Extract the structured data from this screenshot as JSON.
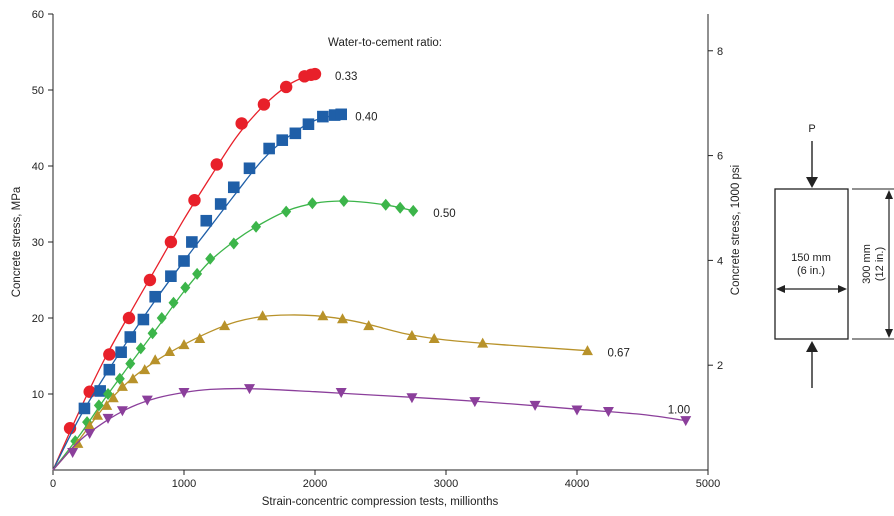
{
  "chart_data": {
    "type": "line",
    "title": "",
    "legend_title": "Water-to-cement ratio:",
    "xlabel": "Strain-concentric compression tests, millionths",
    "ylabel": "Concrete stress, MPa",
    "y2label": "Concrete stress, 1000 psi",
    "xlim": [
      0,
      5000
    ],
    "ylim": [
      0,
      60
    ],
    "xticks": [
      "0",
      "1000",
      "2000",
      "3000",
      "4000",
      "5000"
    ],
    "yticks": [
      "10",
      "20",
      "30",
      "40",
      "50",
      "60"
    ],
    "y2ticks": [
      "2",
      "4",
      "6",
      "8"
    ],
    "y2_values_ksi": [
      2,
      4,
      6,
      8
    ],
    "ksi_to_mpa": 6.895,
    "grid": false,
    "series": [
      {
        "name": "0.33",
        "color": "#e8202a",
        "marker": "circle",
        "points": [
          [
            130,
            5.5
          ],
          [
            280,
            10.3
          ],
          [
            430,
            15.2
          ],
          [
            580,
            20.0
          ],
          [
            740,
            25.0
          ],
          [
            900,
            30.0
          ],
          [
            1080,
            35.5
          ],
          [
            1250,
            40.2
          ],
          [
            1440,
            45.6
          ],
          [
            1610,
            48.1
          ],
          [
            1780,
            50.4
          ],
          [
            1920,
            51.8
          ],
          [
            1970,
            52.0
          ],
          [
            2000,
            52.1
          ]
        ],
        "curve": [
          [
            0,
            0
          ],
          [
            200,
            7.7
          ],
          [
            400,
            14.8
          ],
          [
            600,
            21.0
          ],
          [
            800,
            27.0
          ],
          [
            1000,
            33.0
          ],
          [
            1200,
            38.5
          ],
          [
            1400,
            43.8
          ],
          [
            1600,
            47.8
          ],
          [
            1800,
            50.7
          ],
          [
            1950,
            51.9
          ],
          [
            2000,
            52.1
          ]
        ]
      },
      {
        "name": "0.40",
        "color": "#1f5fa8",
        "marker": "square",
        "points": [
          [
            240,
            8.1
          ],
          [
            360,
            10.4
          ],
          [
            430,
            13.2
          ],
          [
            520,
            15.5
          ],
          [
            590,
            17.5
          ],
          [
            690,
            19.8
          ],
          [
            780,
            22.8
          ],
          [
            900,
            25.5
          ],
          [
            1000,
            27.5
          ],
          [
            1060,
            30.0
          ],
          [
            1170,
            32.8
          ],
          [
            1280,
            35.0
          ],
          [
            1380,
            37.2
          ],
          [
            1500,
            39.7
          ],
          [
            1650,
            42.3
          ],
          [
            1750,
            43.4
          ],
          [
            1850,
            44.3
          ],
          [
            1950,
            45.5
          ],
          [
            2060,
            46.5
          ],
          [
            2150,
            46.7
          ],
          [
            2200,
            46.8
          ]
        ],
        "curve": [
          [
            0,
            0
          ],
          [
            200,
            6.8
          ],
          [
            400,
            12.5
          ],
          [
            600,
            17.8
          ],
          [
            800,
            22.8
          ],
          [
            1000,
            27.5
          ],
          [
            1200,
            32.0
          ],
          [
            1400,
            36.5
          ],
          [
            1600,
            40.8
          ],
          [
            1800,
            43.9
          ],
          [
            2000,
            46.0
          ],
          [
            2200,
            46.8
          ]
        ]
      },
      {
        "name": "0.50",
        "color": "#3cb54a",
        "marker": "diamond",
        "points": [
          [
            170,
            3.8
          ],
          [
            260,
            6.3
          ],
          [
            350,
            8.5
          ],
          [
            420,
            10.0
          ],
          [
            510,
            12.0
          ],
          [
            590,
            14.0
          ],
          [
            670,
            16.0
          ],
          [
            760,
            18.0
          ],
          [
            830,
            20.0
          ],
          [
            920,
            22.0
          ],
          [
            1010,
            24.0
          ],
          [
            1100,
            25.8
          ],
          [
            1200,
            27.8
          ],
          [
            1380,
            29.8
          ],
          [
            1550,
            32.0
          ],
          [
            1780,
            34.0
          ],
          [
            1980,
            35.1
          ],
          [
            2220,
            35.4
          ],
          [
            2540,
            34.9
          ],
          [
            2650,
            34.5
          ],
          [
            2750,
            34.1
          ]
        ],
        "curve": [
          [
            0,
            0
          ],
          [
            200,
            4.5
          ],
          [
            400,
            9.5
          ],
          [
            600,
            14.2
          ],
          [
            800,
            18.8
          ],
          [
            1000,
            23.5
          ],
          [
            1200,
            27.5
          ],
          [
            1400,
            30.3
          ],
          [
            1600,
            32.5
          ],
          [
            1800,
            34.2
          ],
          [
            2000,
            35.1
          ],
          [
            2200,
            35.4
          ],
          [
            2400,
            35.2
          ],
          [
            2600,
            34.7
          ],
          [
            2750,
            34.1
          ]
        ]
      },
      {
        "name": "0.67",
        "color": "#b8922a",
        "marker": "triangle-up",
        "points": [
          [
            190,
            3.5
          ],
          [
            280,
            5.8
          ],
          [
            340,
            7.2
          ],
          [
            410,
            8.5
          ],
          [
            460,
            9.5
          ],
          [
            530,
            11.0
          ],
          [
            610,
            12.0
          ],
          [
            700,
            13.2
          ],
          [
            780,
            14.5
          ],
          [
            890,
            15.6
          ],
          [
            1000,
            16.5
          ],
          [
            1120,
            17.3
          ],
          [
            1310,
            19.0
          ],
          [
            1600,
            20.3
          ],
          [
            2060,
            20.3
          ],
          [
            2210,
            19.9
          ],
          [
            2410,
            19.0
          ],
          [
            2740,
            17.7
          ],
          [
            2910,
            17.3
          ],
          [
            3280,
            16.7
          ],
          [
            4080,
            15.7
          ]
        ],
        "curve": [
          [
            0,
            0
          ],
          [
            200,
            4.0
          ],
          [
            400,
            8.5
          ],
          [
            600,
            12.0
          ],
          [
            800,
            14.5
          ],
          [
            1000,
            16.5
          ],
          [
            1200,
            18.2
          ],
          [
            1400,
            19.5
          ],
          [
            1600,
            20.2
          ],
          [
            1800,
            20.4
          ],
          [
            2000,
            20.3
          ],
          [
            2200,
            19.9
          ],
          [
            2400,
            19.2
          ],
          [
            2700,
            17.9
          ],
          [
            3000,
            17.1
          ],
          [
            3500,
            16.4
          ],
          [
            4080,
            15.7
          ]
        ]
      },
      {
        "name": "1.00",
        "color": "#8b3f9b",
        "marker": "triangle-down",
        "points": [
          [
            150,
            2.3
          ],
          [
            280,
            4.8
          ],
          [
            420,
            6.8
          ],
          [
            530,
            7.8
          ],
          [
            720,
            9.2
          ],
          [
            1000,
            10.2
          ],
          [
            1500,
            10.7
          ],
          [
            2200,
            10.2
          ],
          [
            2740,
            9.5
          ],
          [
            3220,
            9.0
          ],
          [
            3680,
            8.5
          ],
          [
            4000,
            7.9
          ],
          [
            4240,
            7.7
          ],
          [
            4830,
            6.5
          ]
        ],
        "curve": [
          [
            0,
            0
          ],
          [
            200,
            3.8
          ],
          [
            400,
            6.4
          ],
          [
            600,
            8.3
          ],
          [
            800,
            9.5
          ],
          [
            1000,
            10.2
          ],
          [
            1200,
            10.6
          ],
          [
            1500,
            10.7
          ],
          [
            2000,
            10.3
          ],
          [
            2500,
            9.8
          ],
          [
            3000,
            9.3
          ],
          [
            3500,
            8.7
          ],
          [
            4000,
            8.0
          ],
          [
            4500,
            7.3
          ],
          [
            4830,
            6.5
          ]
        ]
      }
    ]
  },
  "specimen_diagram": {
    "load_label": "P",
    "width_label_mm": "150 mm",
    "width_label_in": "(6 in.)",
    "height_label_mm": "300 mm",
    "height_label_in": "(12 in.)"
  }
}
